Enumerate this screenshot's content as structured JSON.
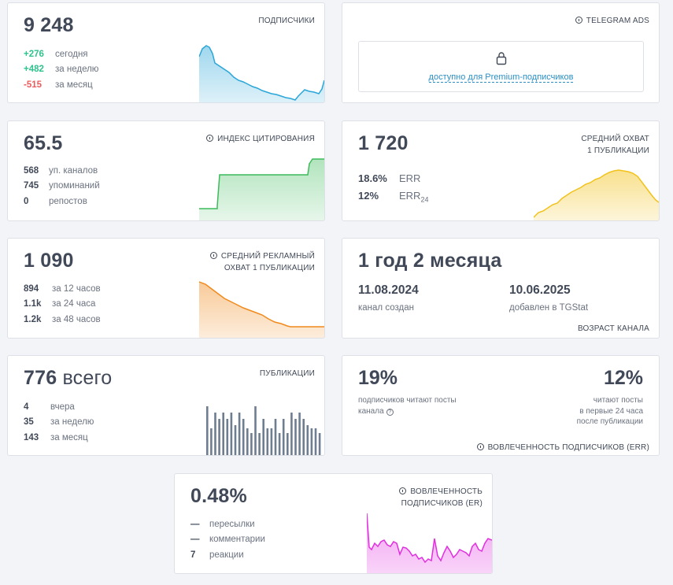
{
  "subscribers": {
    "value": "9 248",
    "label": "ПОДПИСЧИКИ",
    "rows": [
      {
        "value": "+276",
        "label": "сегодня",
        "tone": "g"
      },
      {
        "value": "+482",
        "label": "за неделю",
        "tone": "g"
      },
      {
        "value": "-515",
        "label": "за месяц",
        "tone": "r"
      }
    ],
    "color": "#2aa6d8"
  },
  "ads": {
    "label": "TELEGRAM ADS",
    "locked_text": "доступно для Premium-подписчиков"
  },
  "citation": {
    "value": "65.5",
    "label": "ИНДЕКС ЦИТИРОВАНИЯ",
    "rows": [
      {
        "value": "568",
        "label": "уп. каналов"
      },
      {
        "value": "745",
        "label": "упоминаний"
      },
      {
        "value": "0",
        "label": "репостов"
      }
    ],
    "color": "#3dbb5a"
  },
  "reach": {
    "value": "1 720",
    "label_line1": "СРЕДНИЙ ОХВАТ",
    "label_line2": "1 ПУБЛИКАЦИИ",
    "err": [
      {
        "value": "18.6%",
        "label": "ERR"
      },
      {
        "value": "12%",
        "label": "ERR",
        "sub": "24"
      }
    ],
    "color": "#f2c21b"
  },
  "ad_reach": {
    "value": "1 090",
    "label_line1": "СРЕДНИЙ РЕКЛАМНЫЙ",
    "label_line2": "ОХВАТ 1 ПУБЛИКАЦИИ",
    "rows": [
      {
        "value": "894",
        "label": "за 12 часов"
      },
      {
        "value": "1.1k",
        "label": "за 24 часа"
      },
      {
        "value": "1.2k",
        "label": "за 48 часов"
      }
    ],
    "color": "#f08a1c"
  },
  "age": {
    "value": "1 год 2 месяца",
    "created_date": "11.08.2024",
    "created_label": "канал создан",
    "added_date": "10.06.2025",
    "added_label": "добавлен в TGStat",
    "label": "ВОЗРАСТ КАНАЛА"
  },
  "publications": {
    "value": "776",
    "value_suffix": "всего",
    "label": "ПУБЛИКАЦИИ",
    "rows": [
      {
        "value": "4",
        "label": "вчера"
      },
      {
        "value": "35",
        "label": "за неделю"
      },
      {
        "value": "143",
        "label": "за месяц"
      }
    ],
    "color": "#6e7d8f"
  },
  "engagement": {
    "left_value": "19%",
    "left_text_line1": "подписчиков читают посты",
    "left_text_line2": "канала",
    "right_value": "12%",
    "right_text_line1": "читают посты",
    "right_text_line2": "в первые 24 часа",
    "right_text_line3": "после публикации",
    "label": "ВОВЛЕЧЕННОСТЬ ПОДПИСЧИКОВ (ERR)"
  },
  "er": {
    "value": "0.48%",
    "label_line1": "ВОВЛЕЧЕННОСТЬ",
    "label_line2": "ПОДПИСЧИКОВ (ER)",
    "rows": [
      {
        "value": "—",
        "label": "пересылки"
      },
      {
        "value": "—",
        "label": "комментарии"
      },
      {
        "value": "7",
        "label": "реакции"
      }
    ],
    "color": "#e12ee0"
  }
}
